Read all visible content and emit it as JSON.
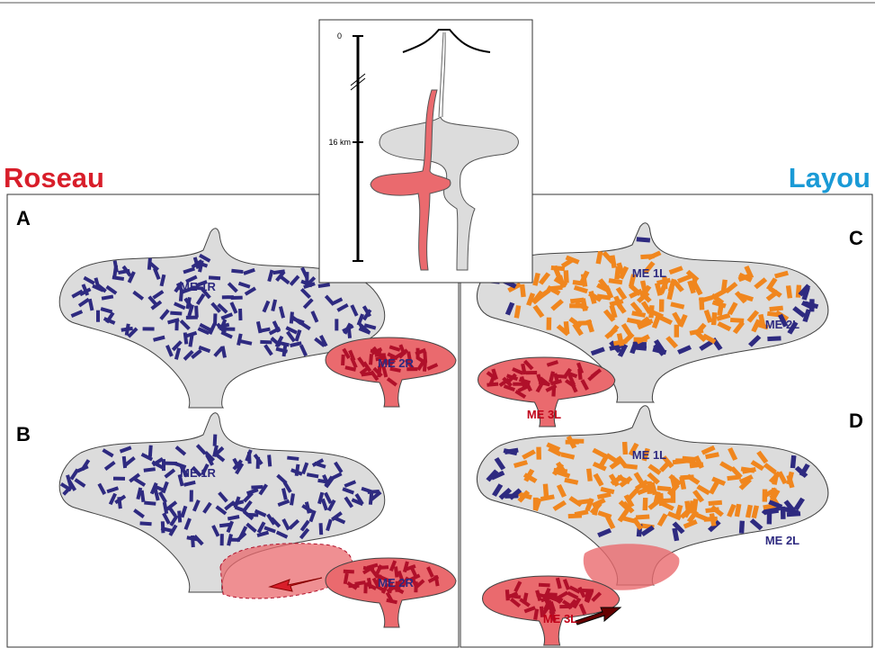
{
  "titles": {
    "left": "Roseau",
    "right": "Layou"
  },
  "panels": [
    {
      "label": "A",
      "chambers": [
        "ME 1R",
        "ME 2R"
      ]
    },
    {
      "label": "B",
      "chambers": [
        "ME 1R",
        "ME 2R"
      ]
    },
    {
      "label": "C",
      "chambers": [
        "ME 1L",
        "ME 2L",
        "ME 3L"
      ]
    },
    {
      "label": "D",
      "chambers": [
        "ME 1L",
        "ME 2L",
        "ME 3L"
      ]
    }
  ],
  "inset": {
    "depth_top": "0",
    "depth_mid": "16 km"
  }
}
